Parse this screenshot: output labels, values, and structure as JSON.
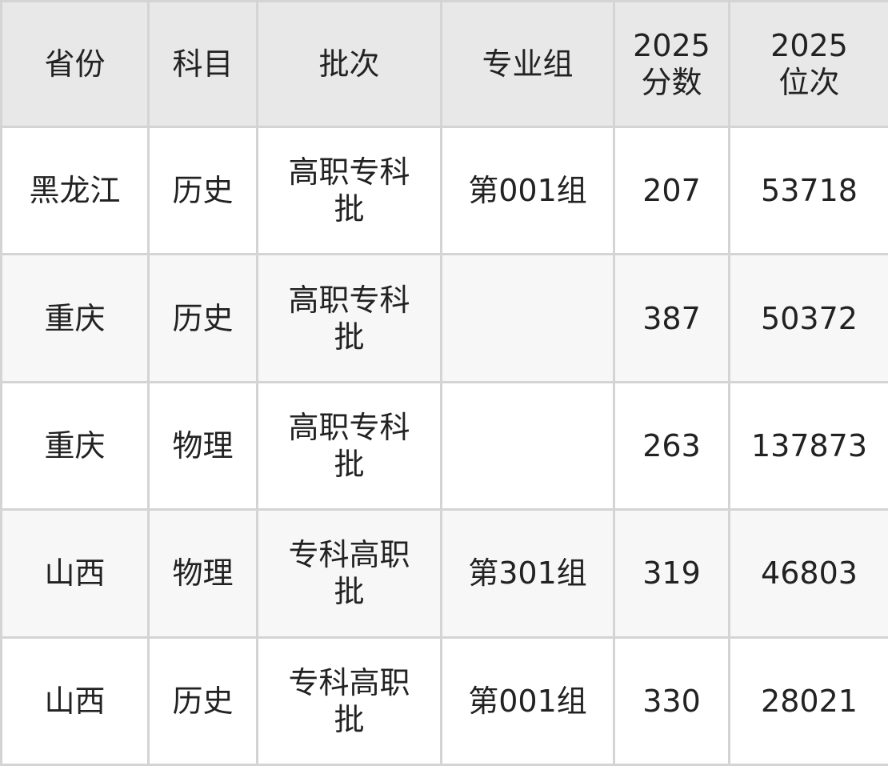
{
  "table": {
    "headers": [
      "省份",
      "科目",
      "批次",
      "专业组",
      "2025\n分数",
      "2025\n位次"
    ],
    "rows": [
      [
        "黑龙江",
        "历史",
        "高职专科批",
        "第001组",
        "207",
        "53718"
      ],
      [
        "重庆",
        "历史",
        "高职专科批",
        "",
        "387",
        "50372"
      ],
      [
        "重庆",
        "物理",
        "高职专科批",
        "",
        "263",
        "137873"
      ],
      [
        "山西",
        "物理",
        "专科高职批",
        "第301组",
        "319",
        "46803"
      ],
      [
        "山西",
        "历史",
        "专科高职批",
        "第001组",
        "330",
        "28021"
      ]
    ]
  },
  "colors": {
    "header_bg": "#e8e8e8",
    "alt_row_bg": "#f7f7f7",
    "border": "#d4d4d4"
  }
}
